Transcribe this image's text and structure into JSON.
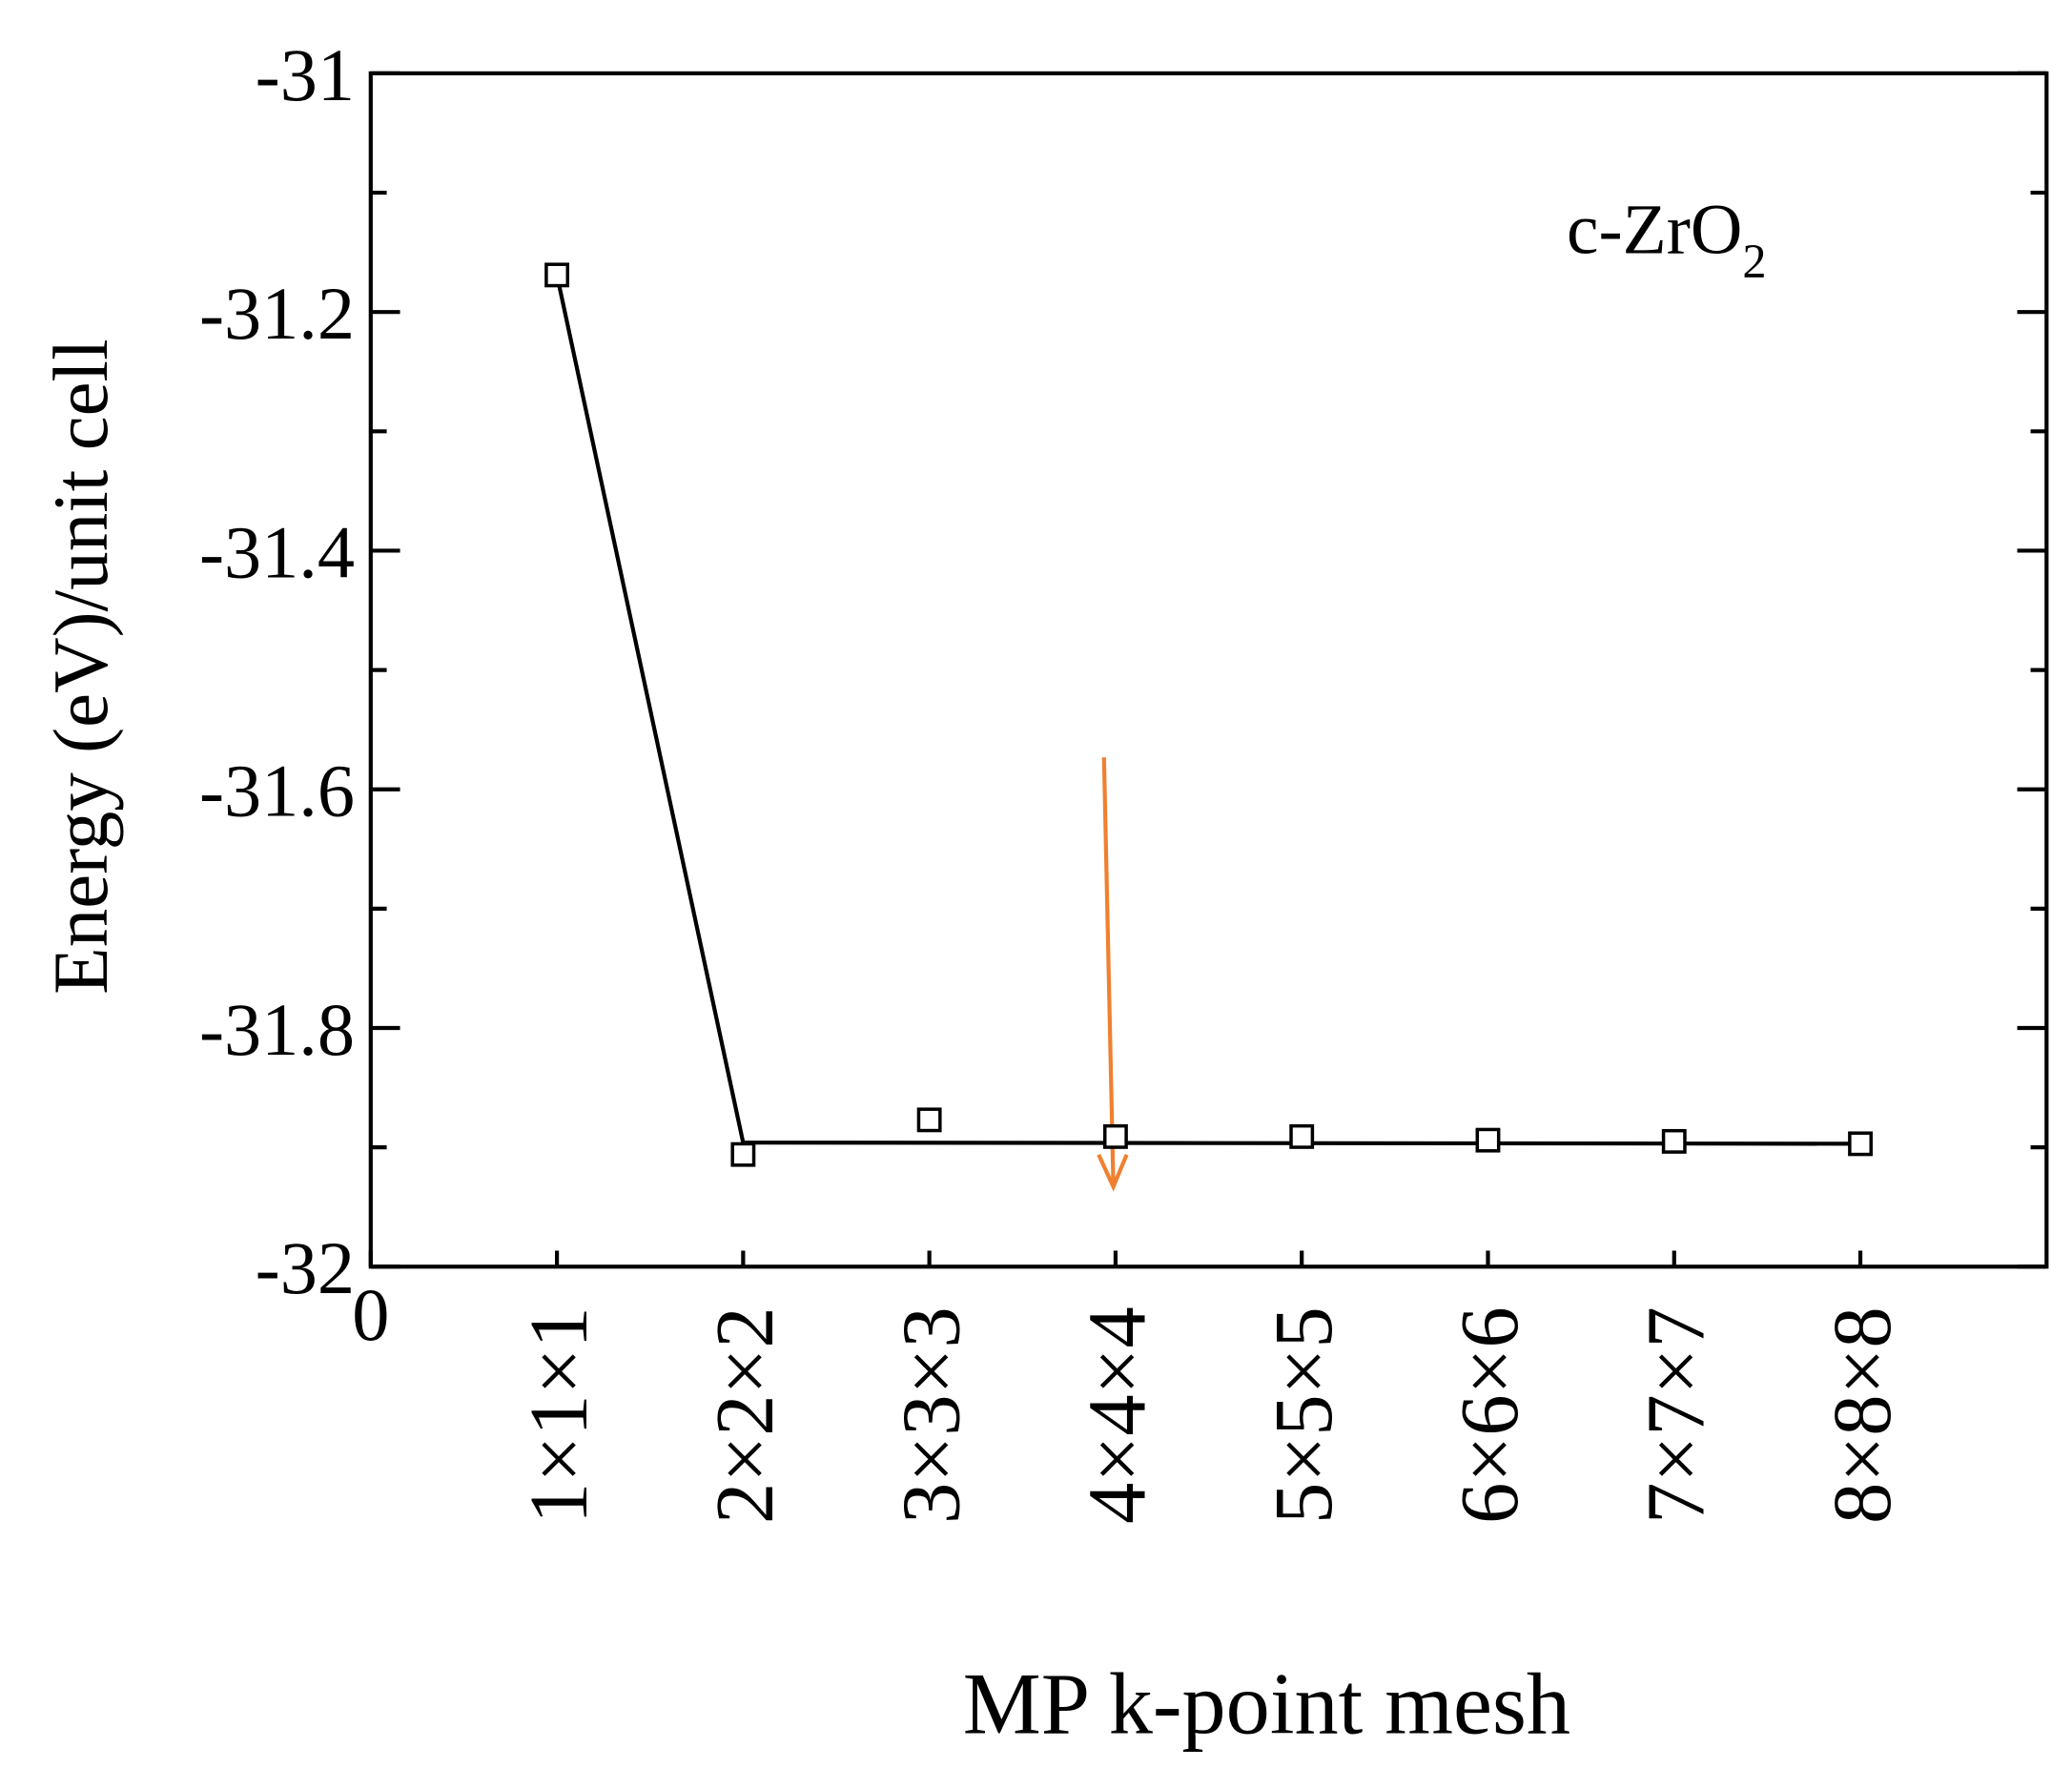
{
  "chart_data": {
    "type": "scatter",
    "xlabel": "MP k-point mesh",
    "ylabel": "Energy (eV)/unit cell",
    "annotation": {
      "text": "c-ZrO",
      "subscript": "2"
    },
    "xlim": [
      0,
      9
    ],
    "xticks": [
      0,
      {
        "value": 1,
        "label": "1×1×1"
      },
      {
        "value": 2,
        "label": "2×2×2"
      },
      {
        "value": 3,
        "label": "3×3×3"
      },
      {
        "value": 4,
        "label": "4×4×4"
      },
      {
        "value": 5,
        "label": "5×5×5"
      },
      {
        "value": 6,
        "label": "6×6×6"
      },
      {
        "value": 7,
        "label": "7×7×7"
      },
      {
        "value": 8,
        "label": "8×8×8"
      }
    ],
    "ylim": [
      -32,
      -31
    ],
    "yticks": [
      -31,
      -31.2,
      -31.4,
      -31.6,
      -31.8,
      -32
    ],
    "yminorticks": [
      -31.1,
      -31.3,
      -31.5,
      -31.7,
      -31.9
    ],
    "series": [
      {
        "kind": "markers",
        "color": "#000000",
        "x": [
          1,
          2,
          3,
          4,
          5,
          6,
          7,
          8
        ],
        "values": [
          -31.169,
          -31.906,
          -31.877,
          -31.891,
          -31.891,
          -31.894,
          -31.895,
          -31.897
        ]
      },
      {
        "kind": "line",
        "color": "#000000",
        "x": [
          1,
          2,
          8
        ],
        "values": [
          -31.169,
          -31.896,
          -31.897
        ]
      }
    ]
  }
}
